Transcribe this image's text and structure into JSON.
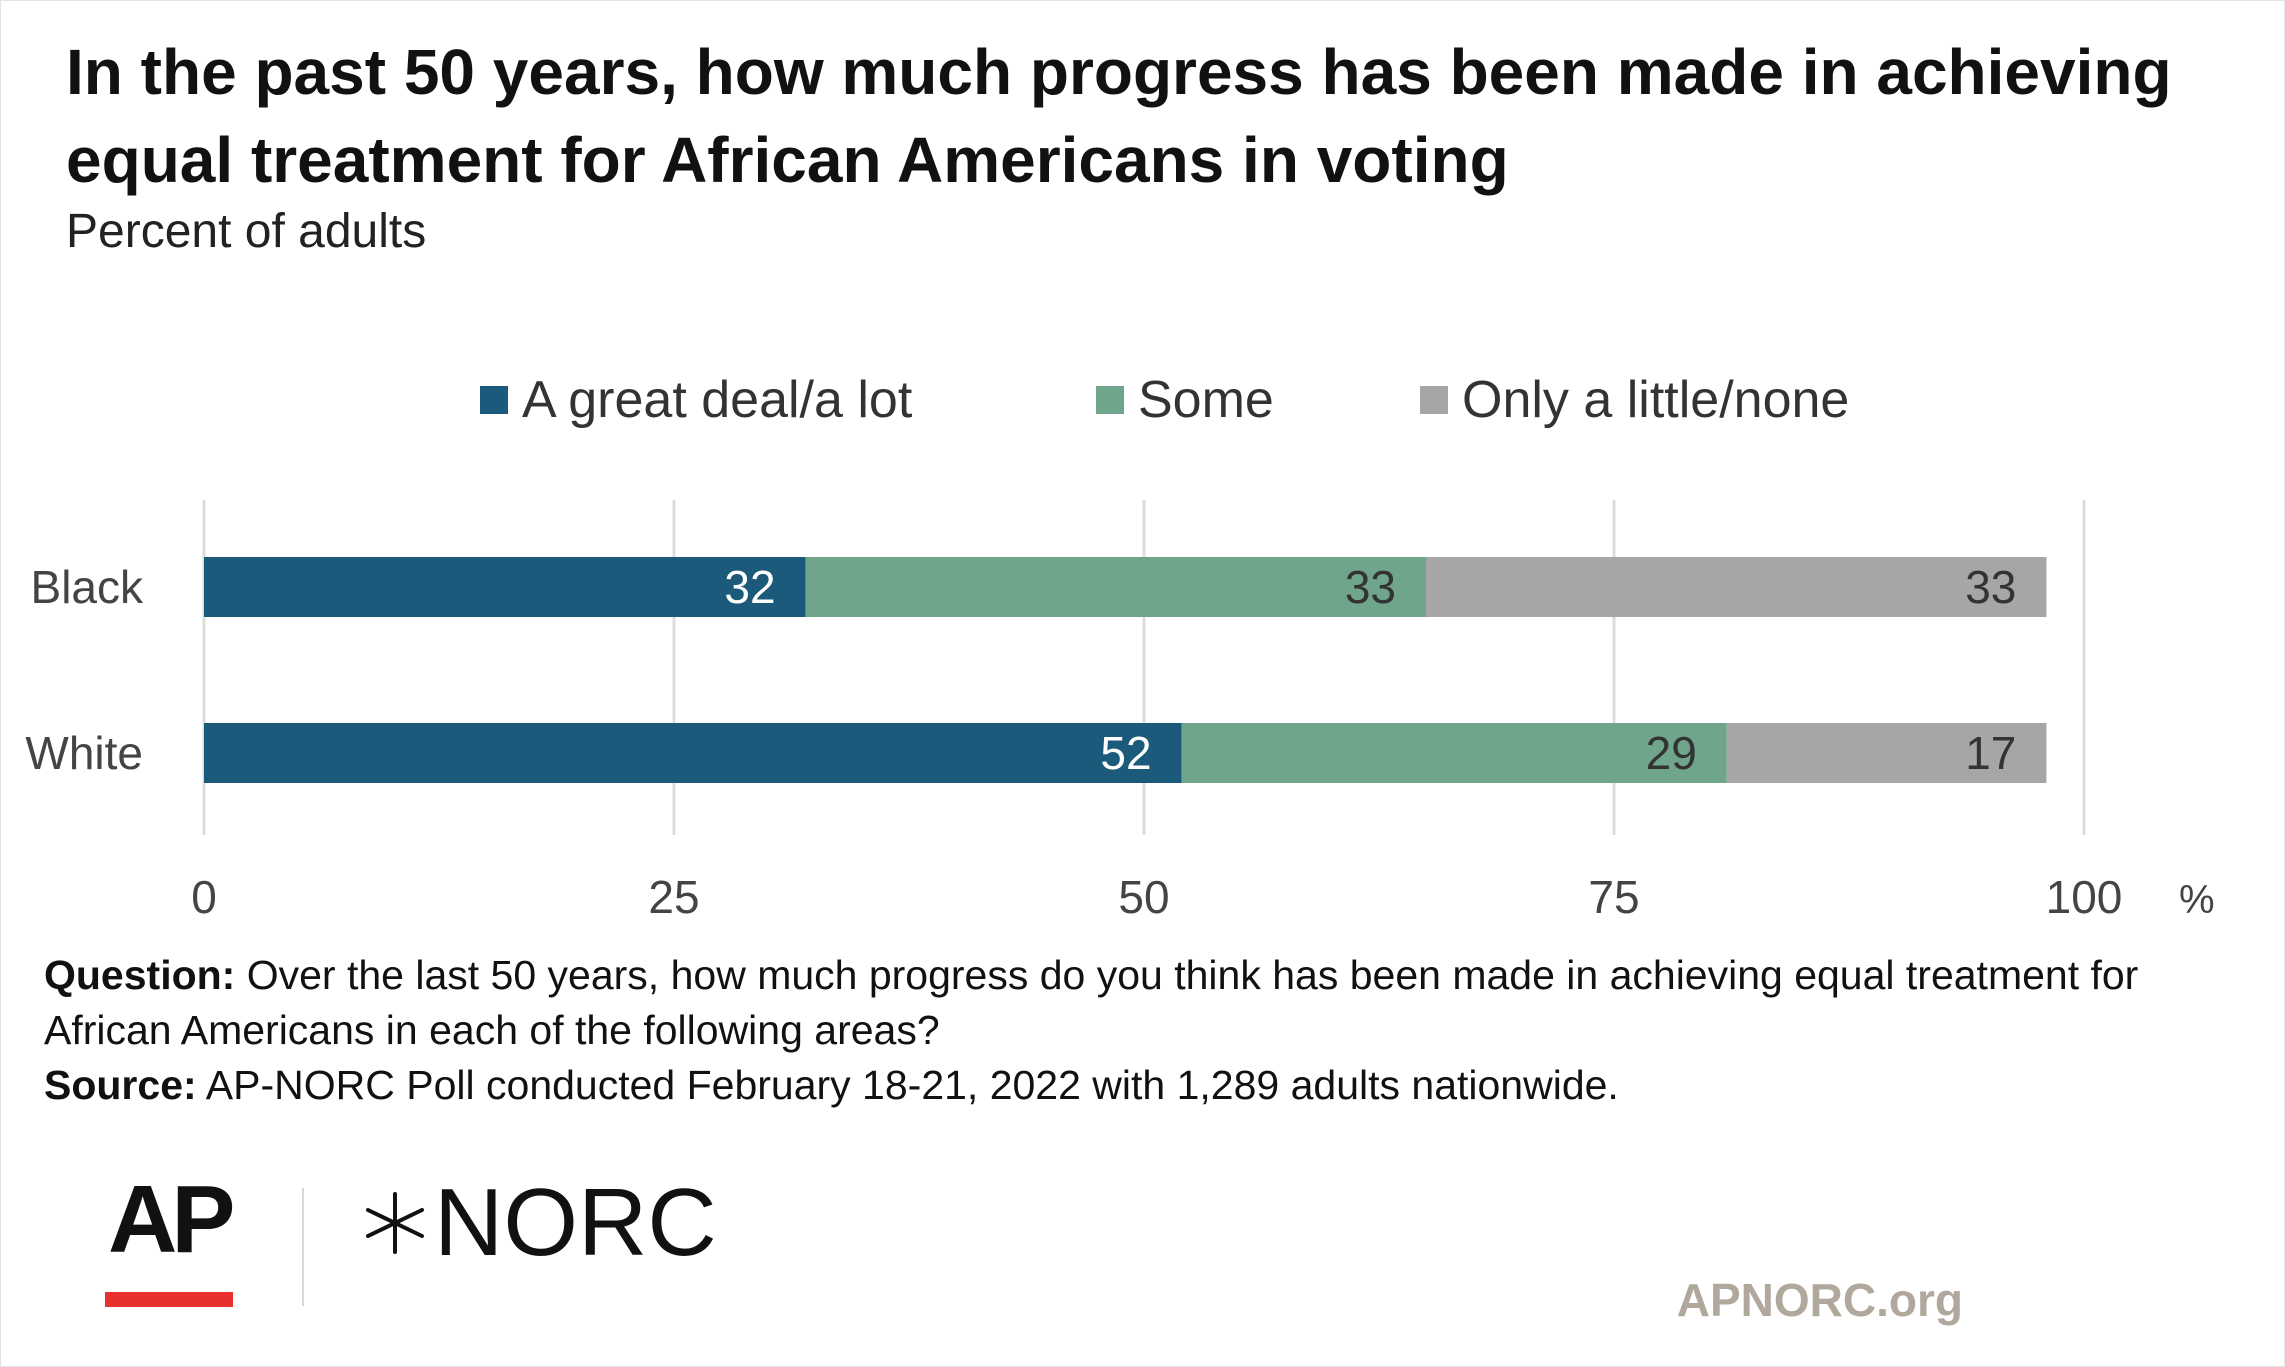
{
  "chart_data": {
    "type": "bar",
    "orientation": "horizontal",
    "stacked": true,
    "title": "In the past 50 years, how much progress has been made in achieving equal treatment for African Americans in voting",
    "subtitle": "Percent of adults",
    "categories": [
      "Black",
      "White"
    ],
    "series": [
      {
        "name": "A great deal/a lot",
        "color": "#1b5a7a",
        "values": [
          32,
          52
        ]
      },
      {
        "name": "Some",
        "color": "#6fa58a",
        "values": [
          33,
          29
        ]
      },
      {
        "name": "Only a little/none",
        "color": "#a6a6a6",
        "values": [
          33,
          17
        ]
      }
    ],
    "xlim": [
      0,
      100
    ],
    "xticks": [
      "0",
      "25",
      "50",
      "75",
      "100"
    ],
    "xunit": "%",
    "grid": true,
    "legend": "top"
  },
  "footer": {
    "question_label": "Question:",
    "question_text": "Over the last 50 years, how much progress do you think has been made in achieving equal treatment for African Americans in each of the following areas?",
    "source_label": "Source:",
    "source_text": "AP-NORC Poll conducted February 18-21, 2022 with 1,289 adults nationwide."
  },
  "branding": {
    "ap_logo": "AP",
    "norc_logo": "NORC",
    "norc_icon": "star-burst-icon",
    "website": "APNORC.org",
    "ap_accent_color": "#e8312f"
  }
}
